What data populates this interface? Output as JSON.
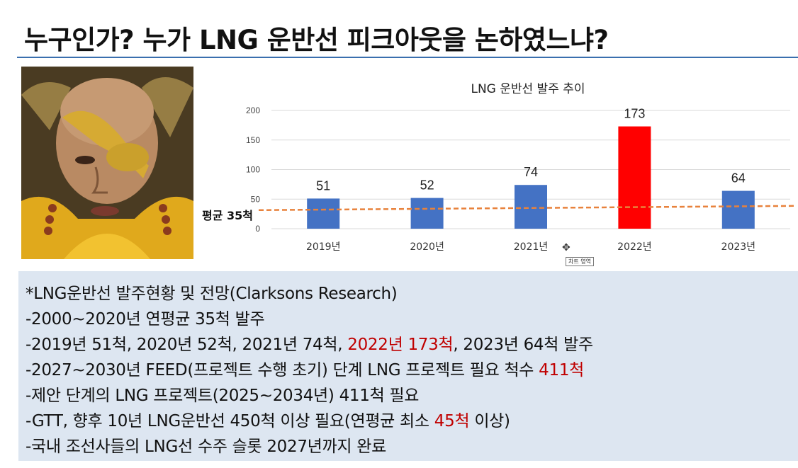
{
  "slide": {
    "title": "누구인가? 누가 LNG 운반선 피크아웃을 논하였느냐?"
  },
  "chart_data": {
    "type": "bar",
    "title": "LNG 운반선 발주 추이",
    "categories": [
      "2019년",
      "2020년",
      "2021년",
      "2022년",
      "2023년"
    ],
    "values": [
      51,
      52,
      74,
      173,
      64
    ],
    "data_labels": [
      "51",
      "52",
      "74",
      "173",
      "64"
    ],
    "bar_colors": [
      "#4472c4",
      "#4472c4",
      "#4472c4",
      "#ff0000",
      "#4472c4"
    ],
    "ylim": [
      0,
      200
    ],
    "yticks": [
      0,
      50,
      100,
      150,
      200
    ],
    "ytick_labels": [
      "0",
      "50",
      "100",
      "150",
      "200"
    ],
    "grid": true,
    "average": {
      "value": 35,
      "label": "평균 35척",
      "color": "#e8823c"
    }
  },
  "tooltip": {
    "text": "차트 영역"
  },
  "info": {
    "lines": [
      {
        "text": "*LNG운반선 발주현황 및 전망(Clarksons Research)"
      },
      {
        "text": "-2000~2020년 연평균 35척 발주"
      },
      {
        "pre": "-2019년 51척, 2020년 52척, 2021년 74척, ",
        "hl": "2022년 173척",
        "post": ", 2023년 64척 발주"
      },
      {
        "pre": "-2027~2030년 FEED(프로젝트 수행 초기) 단계 LNG 프로젝트 필요 척수 ",
        "hl": "411척",
        "post": ""
      },
      {
        "text": "-제안 단계의 LNG 프로젝트(2025~2034년) 411척 필요"
      },
      {
        "pre": "-GTT, 향후 10년 LNG운반선 450척 이상 필요(연평균 최소 ",
        "hl": "45척",
        "post": " 이상)"
      },
      {
        "text": "-국내 조선사들의 LNG선 수주 슬롯 2027년까지 완료"
      }
    ]
  }
}
